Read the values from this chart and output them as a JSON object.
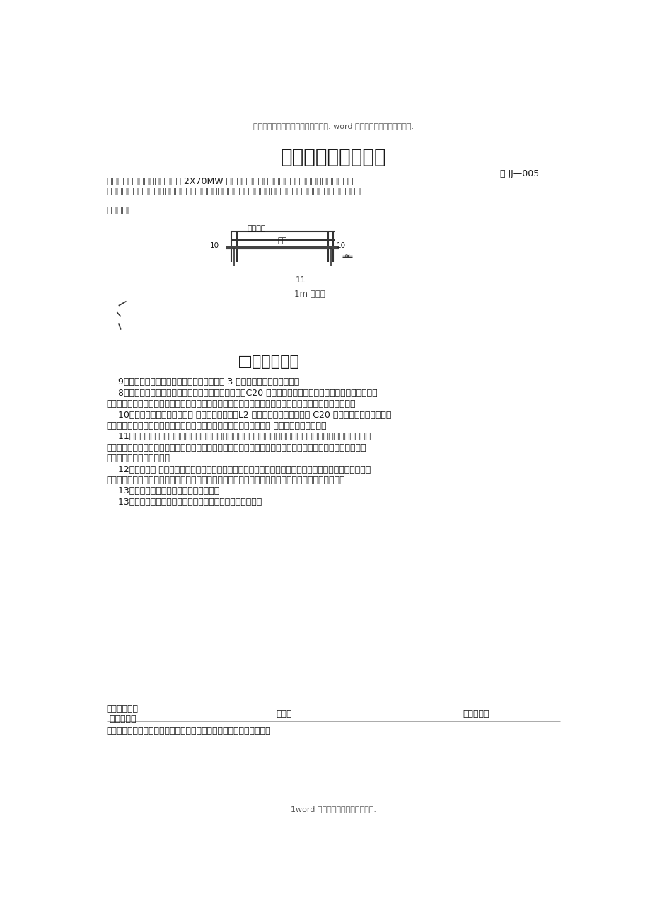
{
  "bg_color": "#ffffff",
  "header_text": "文档从网络中收集，已重新整理排版. word 版本可编辑，欢迎下载支持.",
  "title": "防火门工程技术交底",
  "doc_number": "鲁 JJ—005",
  "line1": "工程名称济南东新热电有限公司 2X70MW 施工单位济南一建集团总公司热水锅炉主厂房建设工程",
  "line2": "交底部位配电室及楼梯间工序名称防火门安装工程交底提要：防火门相关材料的准备、质量要求及施工工艺。",
  "jiaodi_label": "交底内容：",
  "diagram_label_top": "门洞口宽",
  "diagram_label_mid": "门宽",
  "diagram_num_left": "10",
  "diagram_num_right": "10",
  "diagram_num_11": "11",
  "waterline_label": "1m 水平线",
  "section_title": "□立橙立面图",
  "paragraphs": [
    "    9、不论采用何种连接方式，每边均不应少于 3 个连接点，且应牢固连接。",
    "    8、门框内灌浆：对于钢质防火门，需要在门框内填充C20 细石混凝上；填充前应先把门关好，将门扇开启",
    "而的门框与门扇之间的防漏孔塞上塑料盖后，方可进行填充：填充水泥不能过量，防止门框变形影响开启。",
    "    10、门框与墙体间隙间的处理 门框周边缝隙，用L2 的水泥砂浆或强度不低于 C20 的细石混凝土嵌缝牢固，",
    "应保证与墙体结成整体：经养护凝固后，再粉刷洞口及墙体。门框与墙·体连接处打建筑密封胶.",
    "    11、安装门扇 门扇缝隙尺寸合适后，即安装合页，安装上、中、下合页时，安装时应先拧上下合页一个螺",
    "丝，然后关上门检查缝隙是否合适。口与扇是否平整，无问题后方可将螺丝全部拧上拧紧。螺丝的启口方向均应",
    "在同一方向，为垂直方向口",
    "    12、安装五金 五金配件安装均应符合消防规范要求并达到各自的使用功能。闭门器通常安装在疏散方向的",
    "顺方向，确保启闭灵活，安装防火锁的双扇对开门必须安装插销，安好后插销与盖扇不得有摩擦现象。",
    "    13、选好开门角度，在门上钻好安装孔。",
    "    13、将闭门器安装在门上，带调速阀的一端朝门合页一侧。"
  ],
  "footer_proj": "项目（专业）",
  "footer_tech": " 技术负责人",
  "footer_jiaodi": "交底人",
  "footer_jieshou": "接受交底人",
  "footer_note": "注：本记录一式两份，一份交底单位存，一份接受交底单位存。日期：",
  "footer_bottom": "1word 版本可编辑，欢迎下载支持.",
  "text_color": "#1a1a1a",
  "header_color": "#555555"
}
